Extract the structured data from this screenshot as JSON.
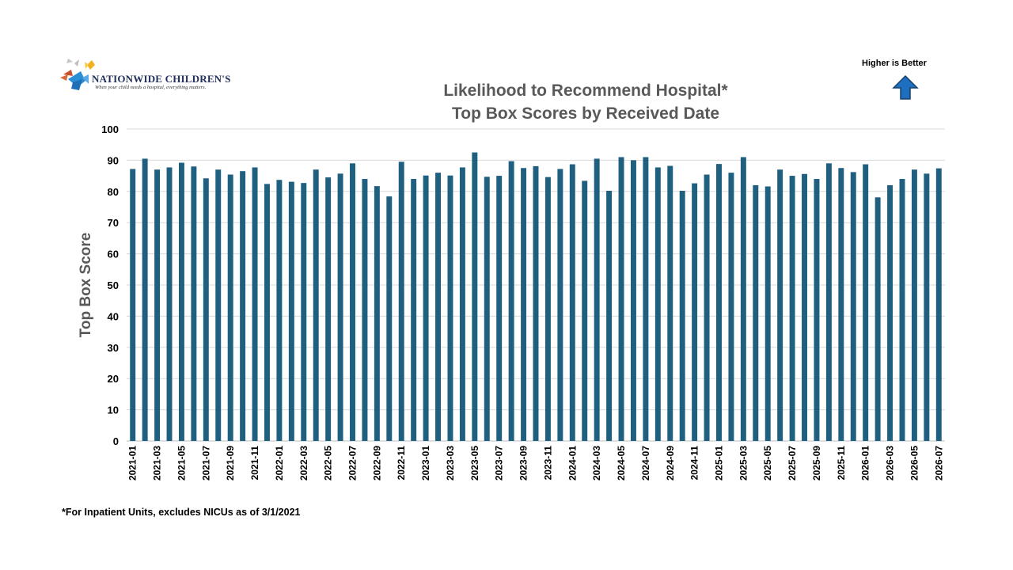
{
  "logo": {
    "name": "NATIONWIDE CHILDREN'S",
    "tagline": "When your child needs a hospital, everything matters."
  },
  "title_line1": "Likelihood to Recommend Hospital*",
  "title_line2": "Top Box Scores by Received Date",
  "higher_is_better": "Higher is Better",
  "footnote": "*For Inpatient Units, excludes NICUs as of 3/1/2021",
  "colors": {
    "bar": "#1f5f7f",
    "arrow": "#1f6fc0",
    "title": "#595959"
  },
  "chart_data": {
    "type": "bar",
    "ylabel": "Top Box Score",
    "ylim": [
      0,
      100
    ],
    "yticks": [
      0,
      10,
      20,
      30,
      40,
      50,
      60,
      70,
      80,
      90,
      100
    ],
    "grid": true,
    "categories": [
      "2021-01",
      "2021-02",
      "2021-03",
      "2021-04",
      "2021-05",
      "2021-06",
      "2021-07",
      "2021-08",
      "2021-09",
      "2021-10",
      "2021-11",
      "2021-12",
      "2022-01",
      "2022-02",
      "2022-03",
      "2022-04",
      "2022-05",
      "2022-06",
      "2022-07",
      "2022-08",
      "2022-09",
      "2022-10",
      "2022-11",
      "2022-12",
      "2023-01",
      "2023-02",
      "2023-03",
      "2023-04",
      "2023-05",
      "2023-06",
      "2023-07",
      "2023-08",
      "2023-09",
      "2023-10",
      "2023-11",
      "2023-12",
      "2024-01",
      "2024-02",
      "2024-03",
      "2024-04",
      "2024-05",
      "2024-06",
      "2024-07",
      "2024-08",
      "2024-09",
      "2024-10",
      "2024-11",
      "2024-12",
      "2025-01",
      "2025-02",
      "2025-03",
      "2025-04",
      "2025-05",
      "2025-06",
      "2025-07",
      "2025-08",
      "2025-09",
      "2025-10",
      "2025-11",
      "2025-12",
      "2026-01",
      "2026-02",
      "2026-03",
      "2026-04",
      "2026-05",
      "2026-06",
      "2026-07"
    ],
    "values": [
      87.2,
      90.5,
      87.0,
      87.7,
      89.2,
      88.0,
      84.2,
      87.0,
      85.4,
      86.5,
      87.7,
      82.4,
      83.7,
      83.1,
      82.7,
      87.0,
      84.5,
      85.7,
      89.0,
      84.0,
      81.7,
      78.4,
      89.5,
      84.0,
      85.1,
      86.0,
      85.1,
      87.7,
      92.5,
      84.7,
      85.0,
      89.7,
      87.5,
      88.1,
      84.6,
      87.2,
      88.7,
      83.4,
      90.5,
      80.2,
      91.0,
      90.0,
      91.0,
      87.7,
      88.2,
      80.2,
      82.6,
      85.4,
      88.8,
      86.0,
      91.0,
      82.0,
      81.6,
      87.0,
      85.0,
      85.6,
      84.0,
      89.0,
      87.5,
      86.2,
      88.7,
      78.1,
      82.0,
      84.0,
      87.0,
      85.7,
      87.4
    ],
    "xtick_labels": [
      "2021-01",
      "2021-03",
      "2021-05",
      "2021-07",
      "2021-09",
      "2021-11",
      "2022-01",
      "2022-03",
      "2022-05",
      "2022-07",
      "2022-09",
      "2022-11",
      "2023-01",
      "2023-03",
      "2023-05",
      "2023-07",
      "2023-09",
      "2023-11",
      "2024-01",
      "2024-03",
      "2024-05",
      "2024-07",
      "2024-09",
      "2024-11",
      "2025-01",
      "2025-03",
      "2025-05",
      "2025-07",
      "2025-09",
      "2025-11",
      "2026-01",
      "2026-03",
      "2026-05",
      "2026-07"
    ]
  }
}
